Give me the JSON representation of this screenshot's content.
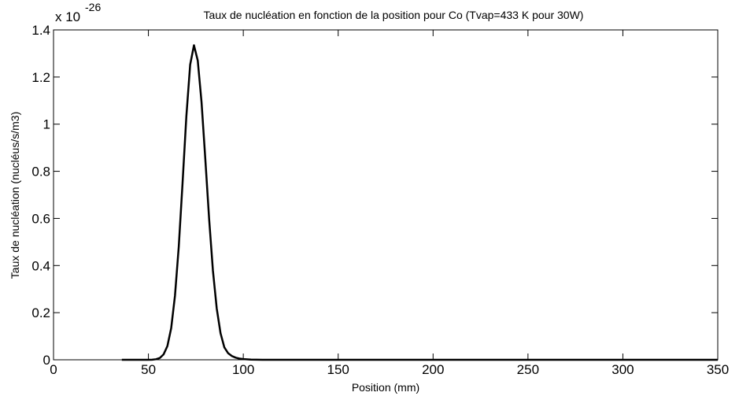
{
  "chart_data": {
    "type": "line",
    "title": "Taux de nucléation en fonction de la position pour Co (Tvap=433 K pour 30W)",
    "xlabel": "Position (mm)",
    "ylabel": "Taux de nucléation (nucléus/s/m3)",
    "y_multiplier": "x 10",
    "y_exponent": "-26",
    "x": [
      36,
      45,
      50,
      52,
      54,
      56,
      58,
      60,
      62,
      64,
      66,
      68,
      70,
      72,
      74,
      76,
      78,
      80,
      82,
      84,
      86,
      88,
      90,
      92,
      94,
      96,
      98,
      100,
      104,
      110,
      150,
      200,
      250,
      300,
      350
    ],
    "series": [
      {
        "name": "Co",
        "color": "#000000",
        "values": [
          0,
          0,
          0,
          0.0006,
          0.0023,
          0.0076,
          0.023,
          0.058,
          0.134,
          0.272,
          0.481,
          0.751,
          1.034,
          1.252,
          1.335,
          1.27,
          1.093,
          0.85,
          0.597,
          0.378,
          0.218,
          0.113,
          0.053,
          0.028,
          0.016,
          0.009,
          0.005,
          0.003,
          0.001,
          0,
          0,
          0,
          0,
          0,
          0
        ]
      }
    ],
    "xlim": [
      0,
      350
    ],
    "xticks": [
      0,
      50,
      100,
      150,
      200,
      250,
      300,
      350
    ],
    "ylim": [
      0,
      1.4
    ],
    "yticks": [
      0,
      0.2,
      0.4,
      0.6,
      0.8,
      1,
      1.2,
      1.4
    ],
    "grid": false
  }
}
